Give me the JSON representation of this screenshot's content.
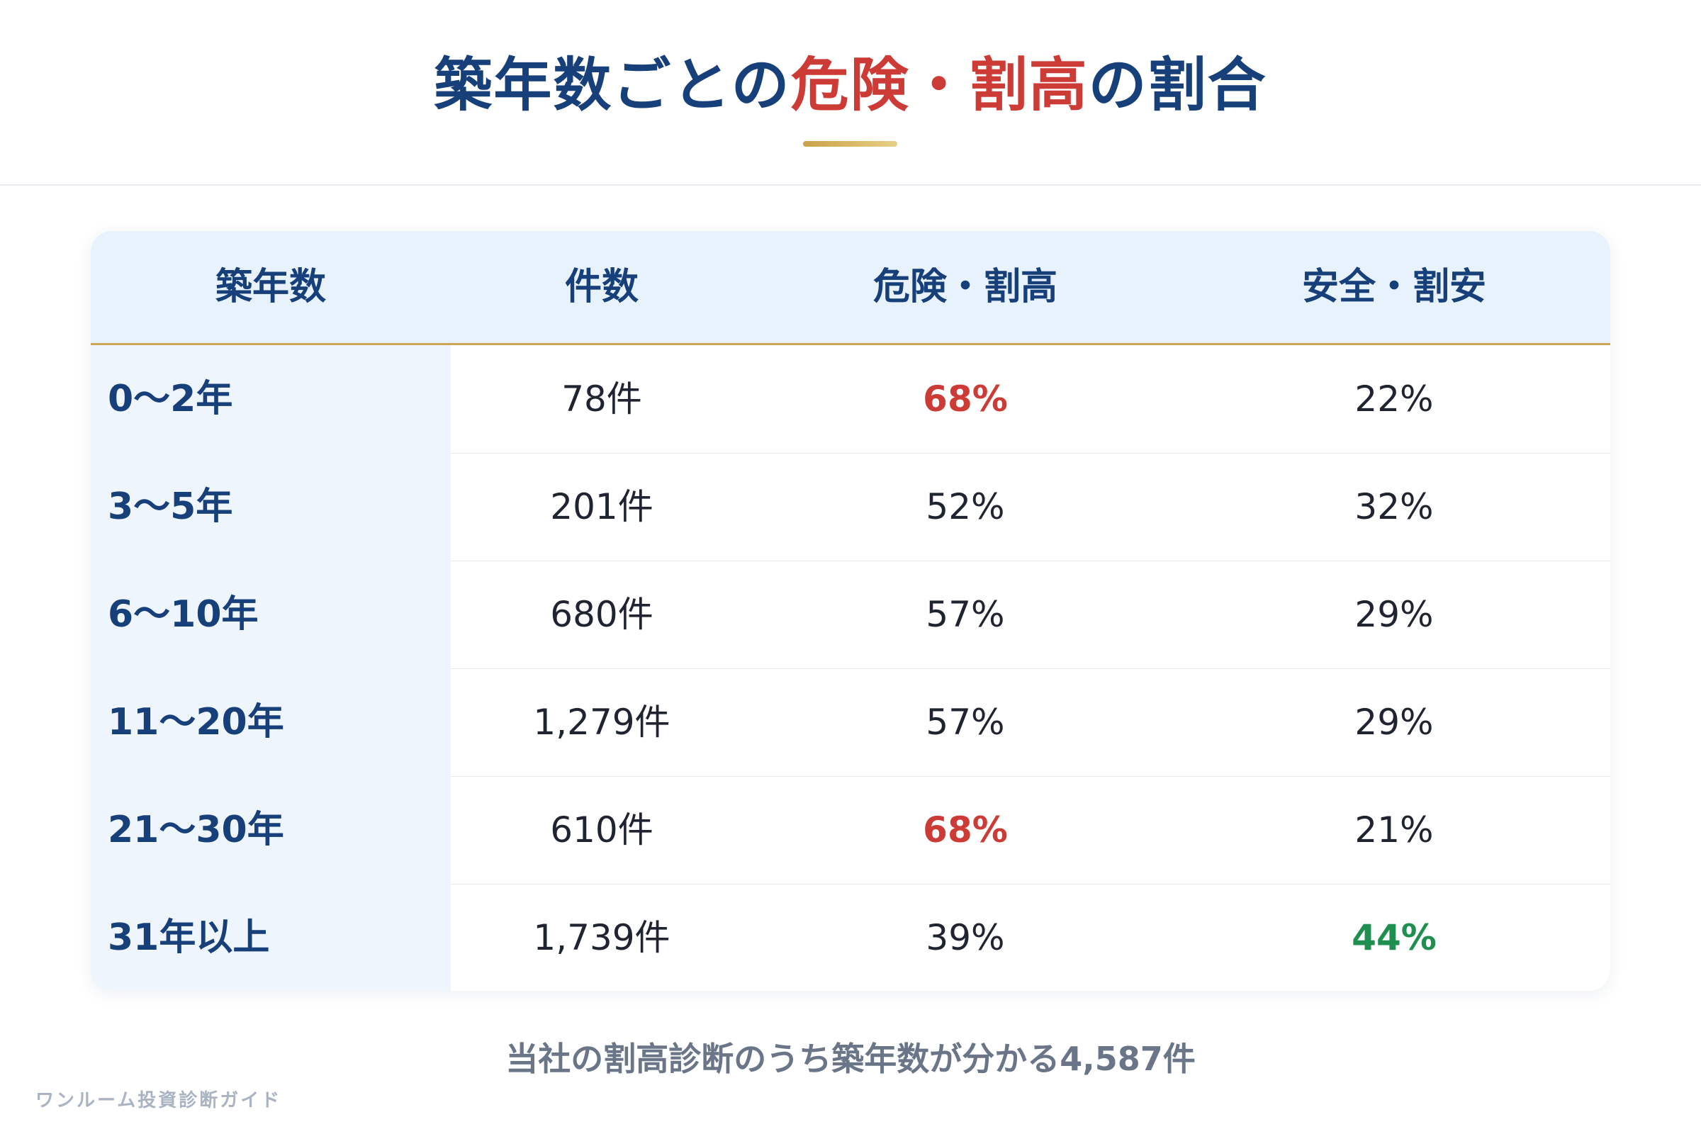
{
  "title": {
    "part1": "築年数ごとの",
    "part2": "危険・割高",
    "part3": "の割合"
  },
  "table": {
    "headers": [
      "築年数",
      "件数",
      "危険・割高",
      "安全・割安"
    ],
    "rows": [
      {
        "age": "0〜2年",
        "count": "78件",
        "risky": "68%",
        "safe": "22%"
      },
      {
        "age": "3〜5年",
        "count": "201件",
        "risky": "52%",
        "safe": "32%"
      },
      {
        "age": "6〜10年",
        "count": "680件",
        "risky": "57%",
        "safe": "29%"
      },
      {
        "age": "11〜20年",
        "count": "1,279件",
        "risky": "57%",
        "safe": "29%"
      },
      {
        "age": "21〜30年",
        "count": "610件",
        "risky": "68%",
        "safe": "21%"
      },
      {
        "age": "31年以上",
        "count": "1,739件",
        "risky": "39%",
        "safe": "44%"
      }
    ]
  },
  "highlight_colors": {
    "risky_high": "#cc3b35",
    "safe_high": "#1e8f4e",
    "navy": "#173f7a",
    "gold": "#cda45a"
  },
  "footnote": "当社の割高診断のうち築年数が分かる4,587件",
  "watermark": "ワンルーム投資診断ガイド"
}
